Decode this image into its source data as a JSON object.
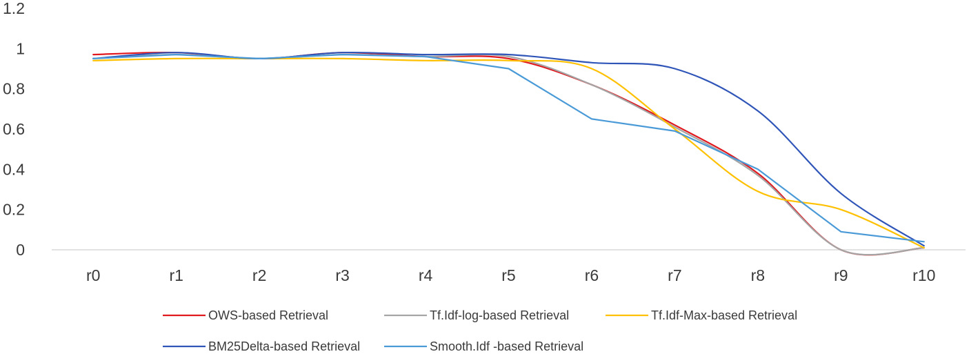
{
  "chart_data": {
    "type": "line",
    "title": "",
    "xlabel": "",
    "ylabel": "",
    "categories": [
      "r0",
      "r1",
      "r2",
      "r3",
      "r4",
      "r5",
      "r6",
      "r7",
      "r8",
      "r9",
      "r10"
    ],
    "ylim": [
      0,
      1.2
    ],
    "yticks": [
      0,
      0.2,
      0.4,
      0.6,
      0.8,
      1,
      1.2
    ],
    "ytick_labels": [
      "0",
      "0.2",
      "0.4",
      "0.6",
      "0.8",
      "1",
      "1.2"
    ],
    "grid": false,
    "legend_position": "bottom",
    "series": [
      {
        "name": "OWS-based Retrieval",
        "color": "#e0191f",
        "smooth": true,
        "values": [
          0.97,
          0.98,
          0.95,
          0.98,
          0.96,
          0.95,
          0.82,
          0.62,
          0.38,
          0.0,
          0.01
        ]
      },
      {
        "name": "Tf.Idf-log-based Retrieval",
        "color": "#a5a5a5",
        "smooth": true,
        "values": [
          0.95,
          0.97,
          0.95,
          0.97,
          0.96,
          0.96,
          0.82,
          0.61,
          0.37,
          0.0,
          0.01
        ]
      },
      {
        "name": "Tf.Idf-Max-based Retrieval",
        "color": "#ffc000",
        "smooth": true,
        "values": [
          0.94,
          0.95,
          0.95,
          0.95,
          0.94,
          0.94,
          0.9,
          0.6,
          0.29,
          0.2,
          0.01
        ]
      },
      {
        "name": "BM25Delta-based Retrieval",
        "color": "#2f55b8",
        "smooth": true,
        "values": [
          0.95,
          0.98,
          0.95,
          0.98,
          0.97,
          0.97,
          0.93,
          0.9,
          0.69,
          0.28,
          0.02
        ]
      },
      {
        "name": "Smooth.Idf -based Retrieval",
        "color": "#4a9ad8",
        "smooth": false,
        "values": [
          0.95,
          0.97,
          0.95,
          0.97,
          0.96,
          0.9,
          0.65,
          0.59,
          0.4,
          0.09,
          0.04
        ]
      }
    ]
  }
}
